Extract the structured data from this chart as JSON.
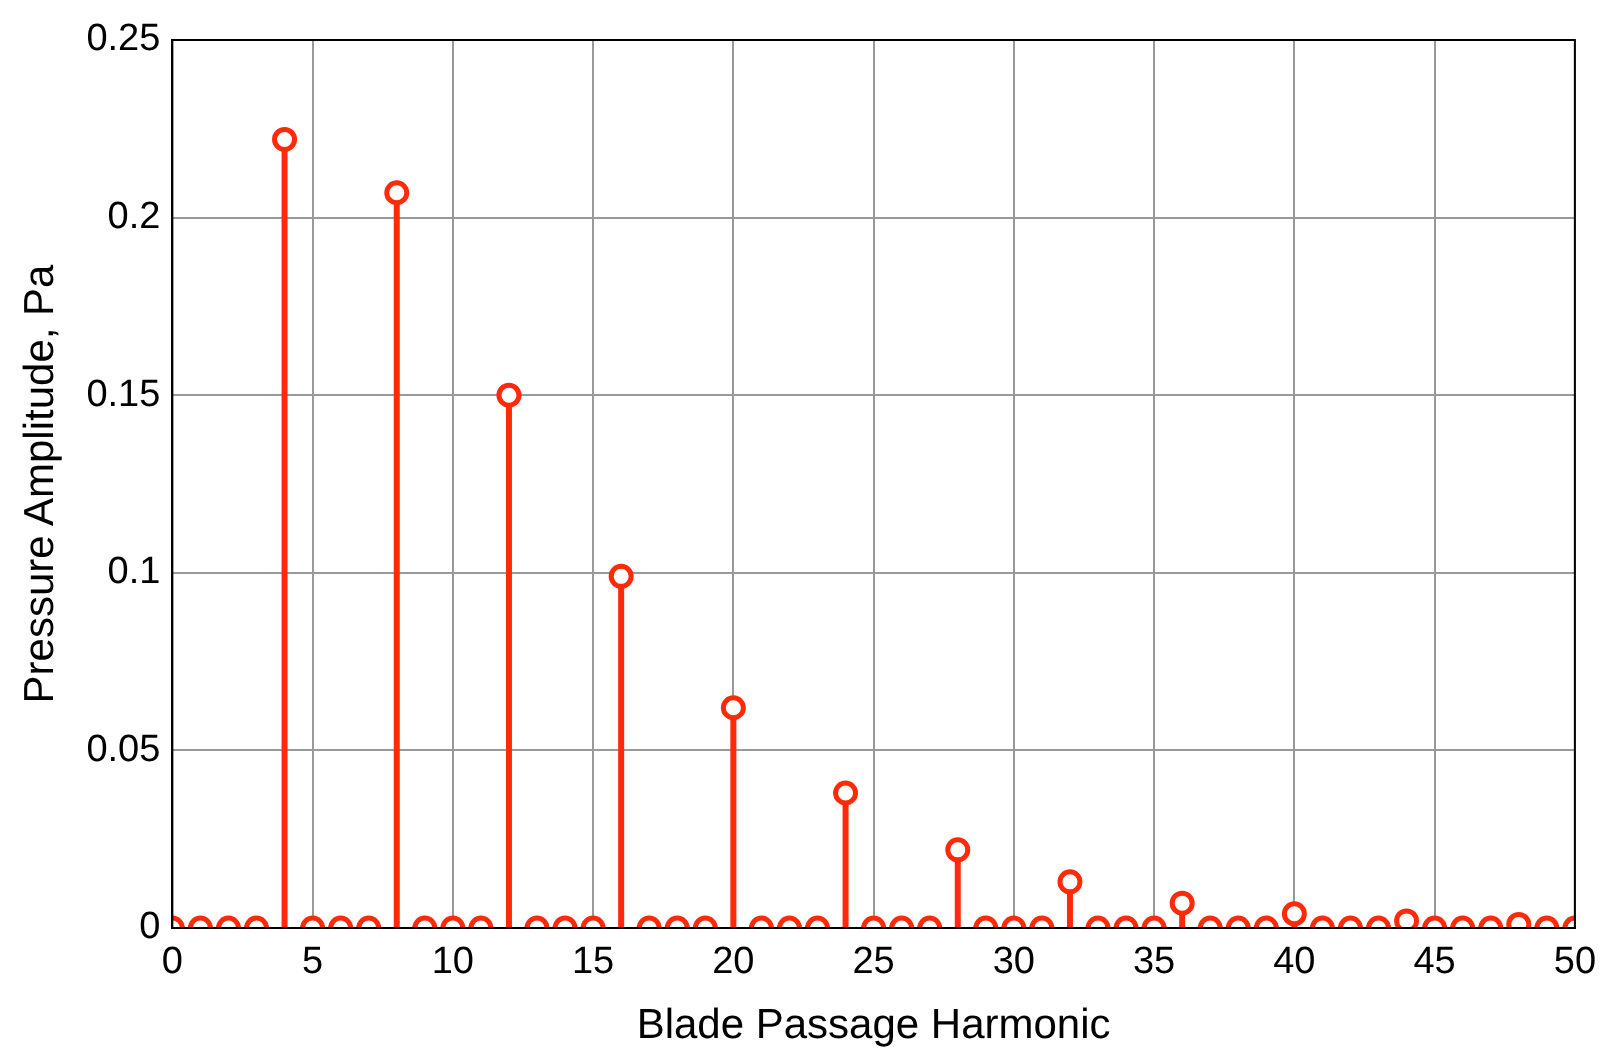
{
  "chart_data": {
    "type": "lollipop",
    "xlabel": "Blade Passage Harmonic",
    "ylabel": "Pressure Amplitude, Pa",
    "x": [
      0,
      1,
      2,
      3,
      4,
      5,
      6,
      7,
      8,
      9,
      10,
      11,
      12,
      13,
      14,
      15,
      16,
      17,
      18,
      19,
      20,
      21,
      22,
      23,
      24,
      25,
      26,
      27,
      28,
      29,
      30,
      31,
      32,
      33,
      34,
      35,
      36,
      37,
      38,
      39,
      40,
      41,
      42,
      43,
      44,
      45,
      46,
      47,
      48,
      49,
      50
    ],
    "values": [
      0,
      0,
      0,
      0,
      0.222,
      0,
      0,
      0,
      0.207,
      0,
      0,
      0,
      0.15,
      0,
      0,
      0,
      0.099,
      0,
      0,
      0,
      0.062,
      0,
      0,
      0,
      0.038,
      0,
      0,
      0,
      0.022,
      0,
      0,
      0,
      0.013,
      0,
      0,
      0,
      0.007,
      0,
      0,
      0,
      0.004,
      0,
      0,
      0,
      0.002,
      0,
      0,
      0,
      0.001,
      0,
      0
    ],
    "color": "#ff2a0a",
    "marker": "circle",
    "grid": true,
    "xlim": [
      0,
      50
    ],
    "xticks": [
      0,
      5,
      10,
      15,
      20,
      25,
      30,
      35,
      40,
      45,
      50
    ],
    "ylim": [
      0,
      0.25
    ],
    "yticks": [
      0,
      0.05,
      0.1,
      0.15,
      0.2,
      0.25
    ]
  }
}
